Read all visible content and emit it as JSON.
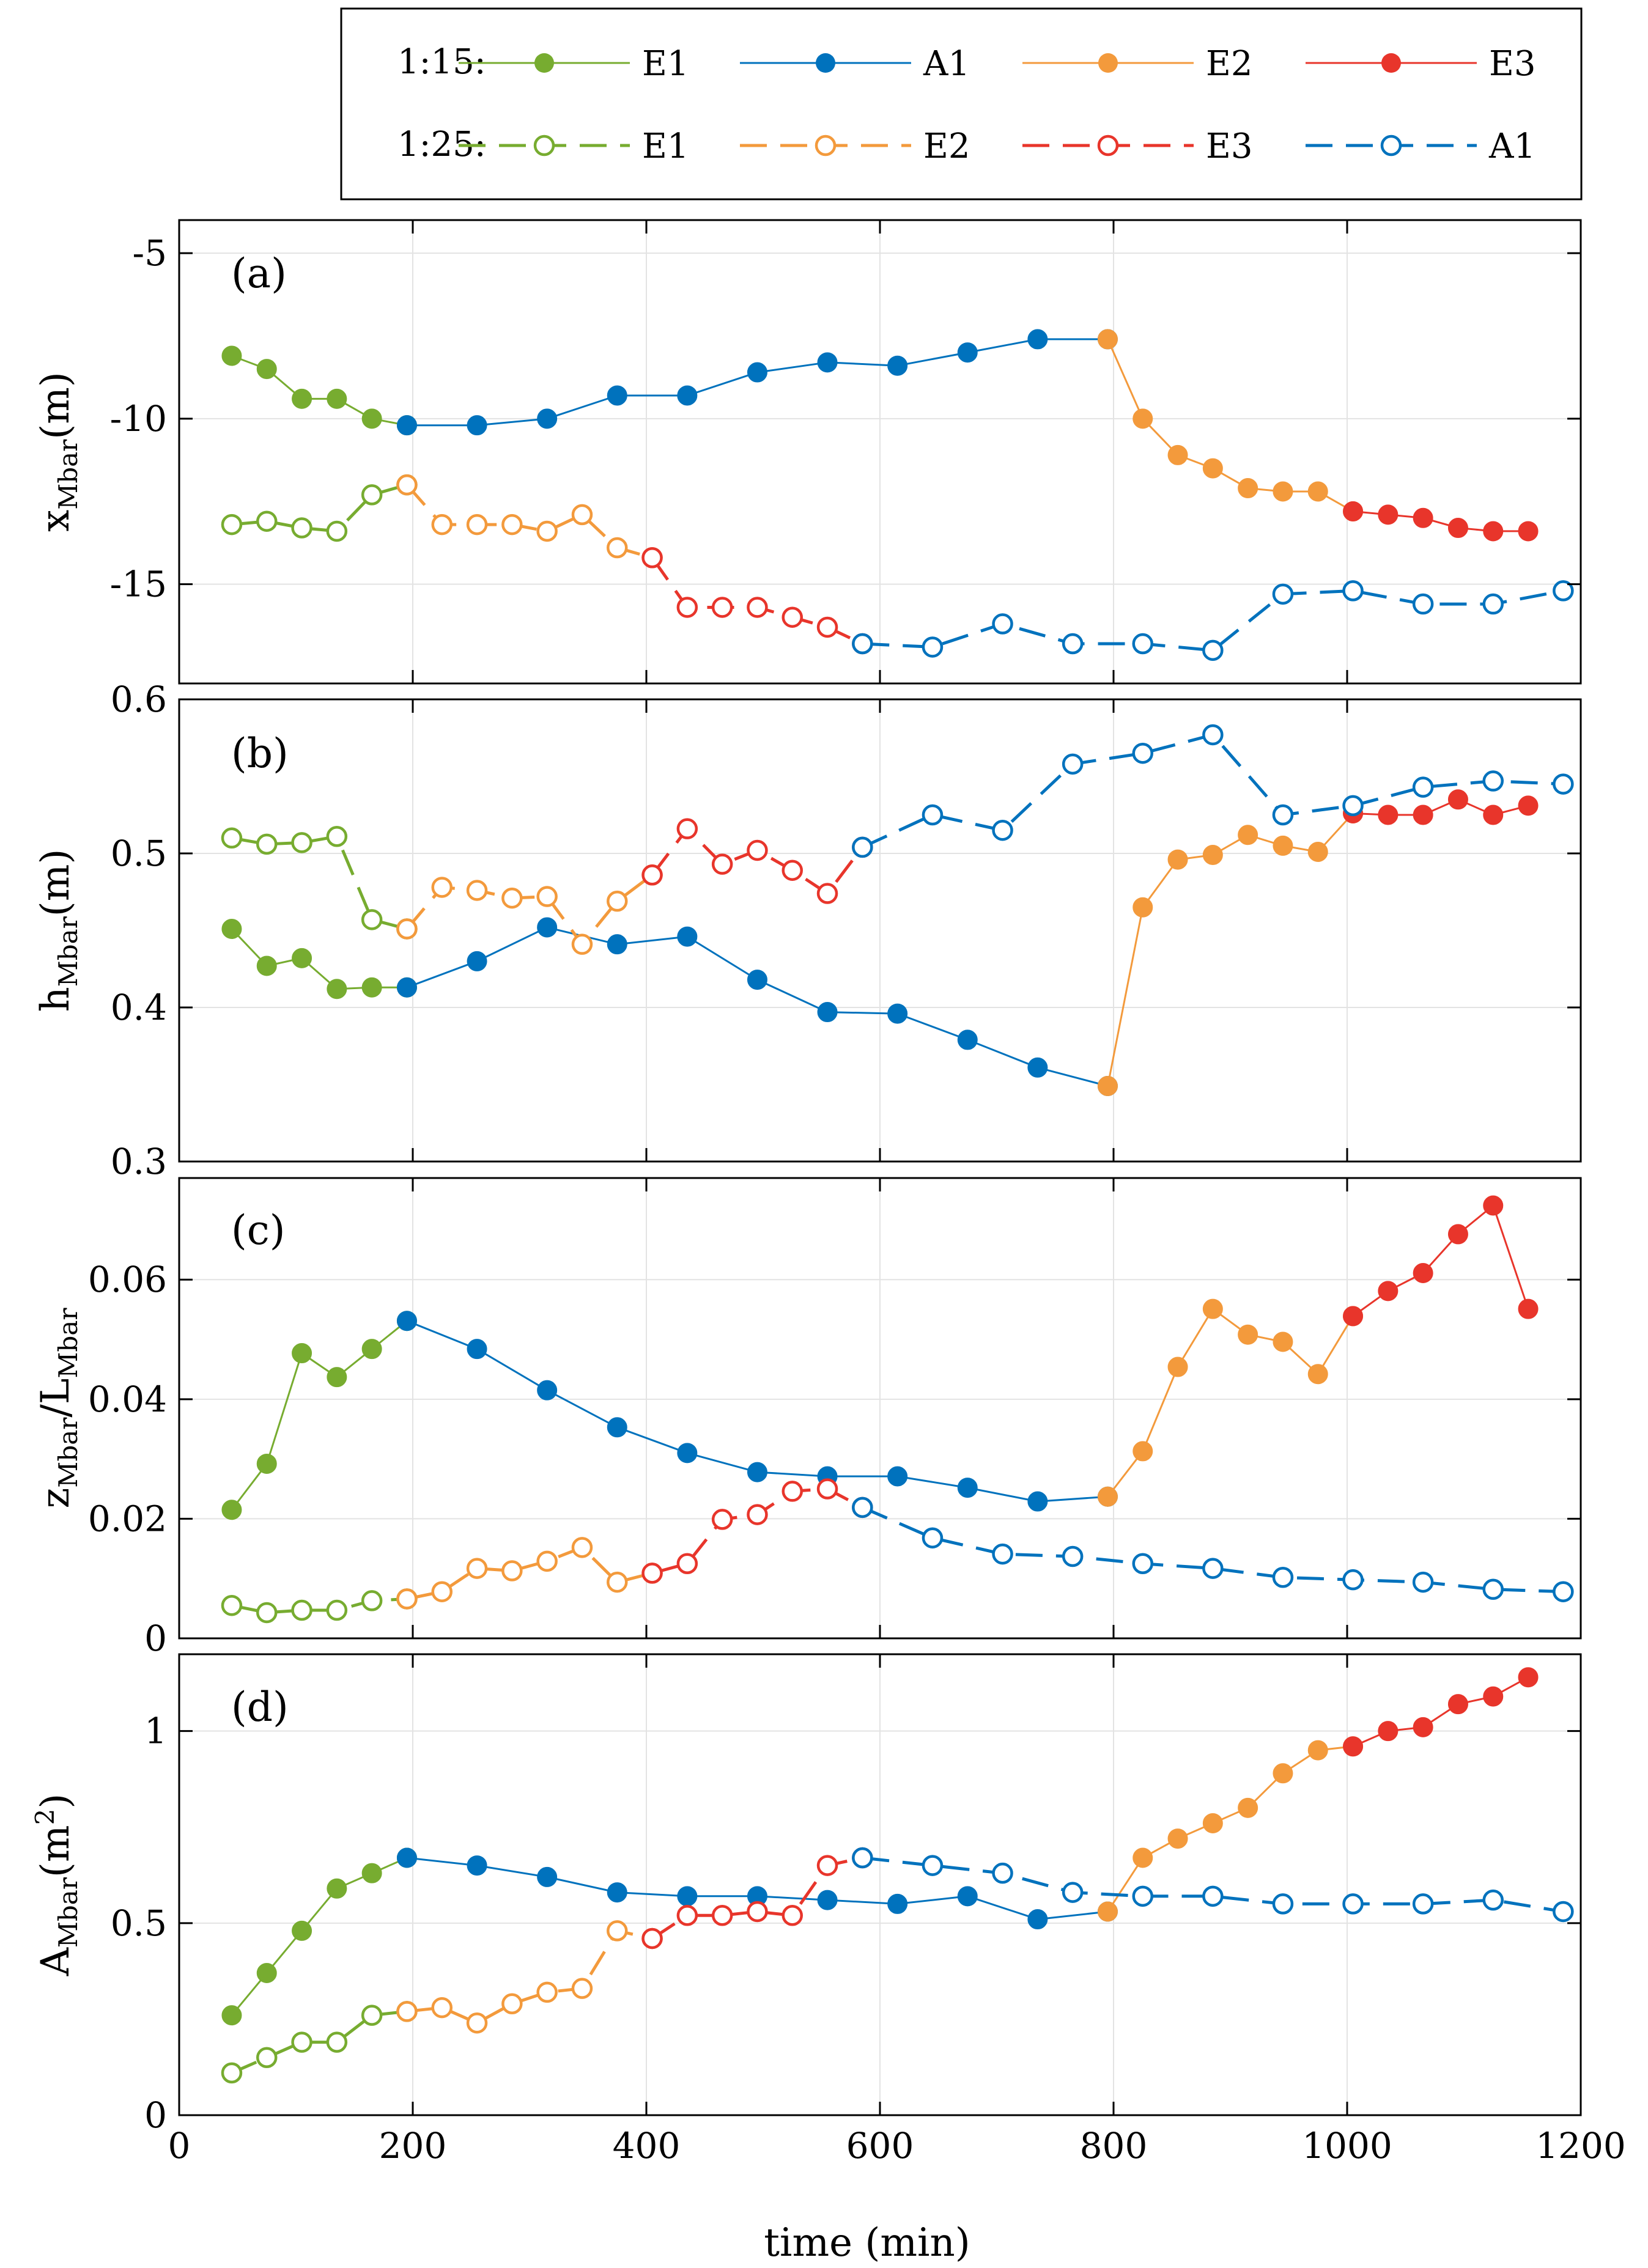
{
  "colors": {
    "E1": "#77AC30",
    "A1": "#0072BD",
    "E2": "#EDB120",
    "E3": "#E8352B",
    "E2_line": "#F39A3C"
  },
  "legend": {
    "row1_label": "1:15:",
    "row2_label": "1:25:",
    "row1_entries": [
      "E1",
      "A1",
      "E2",
      "E3"
    ],
    "row2_entries": [
      "E1",
      "E2",
      "E3",
      "A1"
    ]
  },
  "x_axis": {
    "label": "time (min)",
    "ticks": [
      "0",
      "200",
      "400",
      "600",
      "800",
      "1000",
      "1200"
    ],
    "range": [
      0,
      1200
    ]
  },
  "chart_data": [
    {
      "type": "line",
      "panel": "(a)",
      "ylabel": "x",
      "ylabel_sub": "Mbar",
      "ylabel_unit": "(m)",
      "yticks": [
        "-5",
        "-10",
        "-15"
      ],
      "ytick_values": [
        -5,
        -10,
        -15
      ],
      "ylim": [
        -18,
        -4
      ],
      "series": [
        {
          "name": "1:15 E1",
          "style": "solid",
          "color": "E1",
          "x": [
            45,
            75,
            105,
            135,
            165,
            195
          ],
          "y": [
            -8.1,
            -8.5,
            -9.4,
            -9.4,
            -10.0,
            -10.2
          ]
        },
        {
          "name": "1:15 A1",
          "style": "solid",
          "color": "A1",
          "x": [
            195,
            255,
            315,
            375,
            435,
            495,
            555,
            615,
            675,
            735,
            795
          ],
          "y": [
            -10.2,
            -10.2,
            -10.0,
            -9.3,
            -9.3,
            -8.6,
            -8.3,
            -8.4,
            -8.0,
            -7.6,
            -7.6
          ]
        },
        {
          "name": "1:15 E2",
          "style": "solid",
          "color": "E2",
          "x": [
            795,
            825,
            855,
            885,
            915,
            945,
            975,
            1005
          ],
          "y": [
            -7.6,
            -10.0,
            -11.1,
            -11.5,
            -12.1,
            -12.2,
            -12.2,
            -12.8
          ]
        },
        {
          "name": "1:15 E3",
          "style": "solid",
          "color": "E3",
          "x": [
            1005,
            1035,
            1065,
            1095,
            1125,
            1155
          ],
          "y": [
            -12.8,
            -12.9,
            -13.0,
            -13.3,
            -13.4,
            -13.4
          ]
        },
        {
          "name": "1:25 E1",
          "style": "dashed",
          "color": "E1",
          "x": [
            45,
            75,
            105,
            135,
            165,
            195
          ],
          "y": [
            -13.2,
            -13.1,
            -13.3,
            -13.4,
            -12.3,
            -12.0
          ]
        },
        {
          "name": "1:25 E2",
          "style": "dashed",
          "color": "E2",
          "x": [
            195,
            225,
            255,
            285,
            315,
            345,
            375,
            405
          ],
          "y": [
            -12.0,
            -13.2,
            -13.2,
            -13.2,
            -13.4,
            -12.9,
            -13.9,
            -14.2
          ]
        },
        {
          "name": "1:25 E3",
          "style": "dashed",
          "color": "E3",
          "x": [
            405,
            435,
            465,
            495,
            525,
            555,
            585
          ],
          "y": [
            -14.2,
            -15.7,
            -15.7,
            -15.7,
            -16.0,
            -16.3,
            -16.8
          ]
        },
        {
          "name": "1:25 A1",
          "style": "dashed",
          "color": "A1",
          "x": [
            585,
            645,
            705,
            765,
            825,
            885,
            945,
            1005,
            1065,
            1125,
            1185
          ],
          "y": [
            -16.8,
            -16.9,
            -16.2,
            -16.8,
            -16.8,
            -17.0,
            -15.3,
            -15.2,
            -15.6,
            -15.6,
            -15.2
          ]
        }
      ]
    },
    {
      "type": "line",
      "panel": "(b)",
      "ylabel": "h",
      "ylabel_sub": "Mbar",
      "ylabel_unit": "(m)",
      "yticks": [
        "0.6",
        "0.5",
        "0.4",
        "0.3"
      ],
      "ytick_values": [
        0.6,
        0.5,
        0.4,
        0.3
      ],
      "ylim": [
        0.3,
        0.6
      ],
      "series": [
        {
          "name": "1:15 E1",
          "style": "solid",
          "color": "E1",
          "x": [
            45,
            75,
            105,
            135,
            165,
            195
          ],
          "y": [
            0.451,
            0.427,
            0.432,
            0.412,
            0.413,
            0.413
          ]
        },
        {
          "name": "1:15 A1",
          "style": "solid",
          "color": "A1",
          "x": [
            195,
            255,
            315,
            375,
            435,
            495,
            555,
            615,
            675,
            735,
            795
          ],
          "y": [
            0.413,
            0.43,
            0.452,
            0.441,
            0.446,
            0.418,
            0.397,
            0.396,
            0.379,
            0.361,
            0.349
          ]
        },
        {
          "name": "1:15 E2",
          "style": "solid",
          "color": "E2",
          "x": [
            795,
            825,
            855,
            885,
            915,
            945,
            975,
            1005
          ],
          "y": [
            0.349,
            0.465,
            0.496,
            0.499,
            0.512,
            0.505,
            0.501,
            0.526
          ]
        },
        {
          "name": "1:15 E3",
          "style": "solid",
          "color": "E3",
          "x": [
            1005,
            1035,
            1065,
            1095,
            1125,
            1155
          ],
          "y": [
            0.526,
            0.525,
            0.525,
            0.535,
            0.525,
            0.531
          ]
        },
        {
          "name": "1:25 E1",
          "style": "dashed",
          "color": "E1",
          "x": [
            45,
            75,
            105,
            135,
            165,
            195
          ],
          "y": [
            0.51,
            0.506,
            0.507,
            0.511,
            0.457,
            0.451
          ]
        },
        {
          "name": "1:25 E2",
          "style": "dashed",
          "color": "E2",
          "x": [
            195,
            225,
            255,
            285,
            315,
            345,
            375,
            405
          ],
          "y": [
            0.451,
            0.478,
            0.476,
            0.471,
            0.472,
            0.441,
            0.469,
            0.486
          ]
        },
        {
          "name": "1:25 E3",
          "style": "dashed",
          "color": "E3",
          "x": [
            405,
            435,
            465,
            495,
            525,
            555,
            585
          ],
          "y": [
            0.486,
            0.516,
            0.493,
            0.502,
            0.489,
            0.474,
            0.504
          ]
        },
        {
          "name": "1:25 A1",
          "style": "dashed",
          "color": "A1",
          "x": [
            585,
            645,
            705,
            765,
            825,
            885,
            945,
            1005,
            1065,
            1125,
            1185
          ],
          "y": [
            0.504,
            0.525,
            0.515,
            0.558,
            0.565,
            0.577,
            0.525,
            0.531,
            0.543,
            0.547,
            0.545
          ]
        }
      ]
    },
    {
      "type": "line",
      "panel": "(c)",
      "ylabel": "z",
      "ylabel_sub": "Mbar",
      "ylabel_mid": "/L",
      "ylabel_sub2": "Mbar",
      "yticks": [
        "0.06",
        "0.04",
        "0.02",
        "0"
      ],
      "ytick_values": [
        0.06,
        0.04,
        0.02,
        0
      ],
      "ylim": [
        0,
        0.077
      ],
      "series": [
        {
          "name": "1:15 E1",
          "style": "solid",
          "color": "E1",
          "x": [
            45,
            75,
            105,
            135,
            165,
            195
          ],
          "y": [
            0.0215,
            0.0292,
            0.0477,
            0.0437,
            0.0484,
            0.0531
          ]
        },
        {
          "name": "1:15 A1",
          "style": "solid",
          "color": "A1",
          "x": [
            195,
            255,
            315,
            375,
            435,
            495,
            555,
            615,
            675,
            735,
            795
          ],
          "y": [
            0.0531,
            0.0484,
            0.0415,
            0.0353,
            0.031,
            0.0278,
            0.0271,
            0.0271,
            0.0252,
            0.0229,
            0.0237
          ]
        },
        {
          "name": "1:15 E2",
          "style": "solid",
          "color": "E2",
          "x": [
            795,
            825,
            855,
            885,
            915,
            945,
            975,
            1005
          ],
          "y": [
            0.0237,
            0.0313,
            0.0454,
            0.0551,
            0.0508,
            0.0496,
            0.0442,
            0.0539
          ]
        },
        {
          "name": "1:15 E3",
          "style": "solid",
          "color": "E3",
          "x": [
            1005,
            1035,
            1065,
            1095,
            1125,
            1155
          ],
          "y": [
            0.0539,
            0.0581,
            0.0611,
            0.0676,
            0.0724,
            0.0551
          ]
        },
        {
          "name": "1:25 E1",
          "style": "dashed",
          "color": "E1",
          "x": [
            45,
            75,
            105,
            135,
            165,
            195
          ],
          "y": [
            0.0055,
            0.0043,
            0.0047,
            0.0047,
            0.0063,
            0.0066
          ]
        },
        {
          "name": "1:25 E2",
          "style": "dashed",
          "color": "E2",
          "x": [
            195,
            225,
            255,
            285,
            315,
            345,
            375,
            405
          ],
          "y": [
            0.0066,
            0.0078,
            0.0117,
            0.0113,
            0.0129,
            0.0152,
            0.0094,
            0.0109
          ]
        },
        {
          "name": "1:25 E3",
          "style": "dashed",
          "color": "E3",
          "x": [
            405,
            435,
            465,
            495,
            525,
            555,
            585
          ],
          "y": [
            0.0109,
            0.0125,
            0.0199,
            0.0207,
            0.0246,
            0.025,
            0.0219
          ]
        },
        {
          "name": "1:25 A1",
          "style": "dashed",
          "color": "A1",
          "x": [
            585,
            645,
            705,
            765,
            825,
            885,
            945,
            1005,
            1065,
            1125,
            1185
          ],
          "y": [
            0.0219,
            0.0168,
            0.0141,
            0.0137,
            0.0125,
            0.0117,
            0.0102,
            0.0098,
            0.0094,
            0.0082,
            0.0078
          ]
        }
      ]
    },
    {
      "type": "line",
      "panel": "(d)",
      "ylabel": "A",
      "ylabel_sub": "Mbar",
      "ylabel_unit": "(m",
      "ylabel_sup": "2",
      "ylabel_unit_close": ")",
      "yticks": [
        "1",
        "0.5",
        "0"
      ],
      "ytick_values": [
        1,
        0.5,
        0
      ],
      "ylim": [
        0,
        1.2
      ],
      "series": [
        {
          "name": "1:15 E1",
          "style": "solid",
          "color": "E1",
          "x": [
            45,
            75,
            105,
            135,
            165,
            195
          ],
          "y": [
            0.26,
            0.37,
            0.48,
            0.59,
            0.63,
            0.67
          ]
        },
        {
          "name": "1:15 A1",
          "style": "solid",
          "color": "A1",
          "x": [
            195,
            255,
            315,
            375,
            435,
            495,
            555,
            615,
            675,
            735,
            795
          ],
          "y": [
            0.67,
            0.65,
            0.62,
            0.58,
            0.57,
            0.57,
            0.56,
            0.55,
            0.57,
            0.51,
            0.53
          ]
        },
        {
          "name": "1:15 E2",
          "style": "solid",
          "color": "E2",
          "x": [
            795,
            825,
            855,
            885,
            915,
            945,
            975,
            1005
          ],
          "y": [
            0.53,
            0.67,
            0.72,
            0.76,
            0.8,
            0.89,
            0.95,
            0.96
          ]
        },
        {
          "name": "1:15 E3",
          "style": "solid",
          "color": "E3",
          "x": [
            1005,
            1035,
            1065,
            1095,
            1125,
            1155
          ],
          "y": [
            0.96,
            1.0,
            1.01,
            1.07,
            1.09,
            1.14
          ]
        },
        {
          "name": "1:25 E1",
          "style": "dashed",
          "color": "E1",
          "x": [
            45,
            75,
            105,
            135,
            165,
            195
          ],
          "y": [
            0.11,
            0.15,
            0.19,
            0.19,
            0.26,
            0.27
          ]
        },
        {
          "name": "1:25 E2",
          "style": "dashed",
          "color": "E2",
          "x": [
            195,
            225,
            255,
            285,
            315,
            345,
            375,
            405
          ],
          "y": [
            0.27,
            0.28,
            0.24,
            0.29,
            0.32,
            0.33,
            0.48,
            0.46
          ]
        },
        {
          "name": "1:25 E3",
          "style": "dashed",
          "color": "E3",
          "x": [
            405,
            435,
            465,
            495,
            525,
            555,
            585
          ],
          "y": [
            0.46,
            0.52,
            0.52,
            0.53,
            0.52,
            0.65,
            0.67
          ]
        },
        {
          "name": "1:25 A1",
          "style": "dashed",
          "color": "A1",
          "x": [
            585,
            645,
            705,
            765,
            825,
            885,
            945,
            1005,
            1065,
            1125,
            1185
          ],
          "y": [
            0.67,
            0.65,
            0.63,
            0.58,
            0.57,
            0.57,
            0.55,
            0.55,
            0.55,
            0.56,
            0.53
          ]
        }
      ]
    }
  ]
}
